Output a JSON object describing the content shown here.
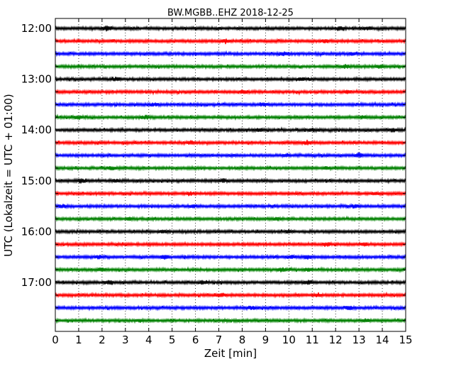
{
  "chart_data": {
    "type": "line",
    "title": "BW.MGBB..EHZ 2018-12-25",
    "xlabel": "Zeit  [min]",
    "ylabel": "UTC (Lokalzeit = UTC + 01:00)",
    "xlim": [
      0,
      15
    ],
    "x_ticks": [
      "0",
      "1",
      "2",
      "3",
      "4",
      "5",
      "6",
      "7",
      "8",
      "9",
      "10",
      "11",
      "12",
      "13",
      "14",
      "15"
    ],
    "y_tick_labels": [
      "12:00",
      "13:00",
      "14:00",
      "15:00",
      "16:00",
      "17:00"
    ],
    "grid": "vertical dotted",
    "trace_minutes": 15,
    "trace_colors": [
      "#000000",
      "#ff0000",
      "#0000ff",
      "#008000"
    ],
    "traces": [
      {
        "start": "12:00",
        "events": [
          [
            2.2,
            2.3
          ],
          [
            12.2,
            1.8
          ],
          [
            13.4,
            1.6
          ]
        ]
      },
      {
        "start": "12:15",
        "events": [
          [
            7.3,
            1.6
          ],
          [
            11.5,
            1.5
          ]
        ]
      },
      {
        "start": "12:30",
        "events": [
          [
            9.8,
            1.5
          ],
          [
            12.7,
            1.6
          ]
        ]
      },
      {
        "start": "12:45",
        "events": [
          [
            12.4,
            2.0
          ],
          [
            13.9,
            1.5
          ]
        ]
      },
      {
        "start": "13:00",
        "events": [
          [
            2.6,
            1.6
          ],
          [
            10.6,
            1.5
          ]
        ]
      },
      {
        "start": "13:15",
        "events": [
          [
            8.1,
            1.5
          ],
          [
            12.5,
            1.4
          ]
        ]
      },
      {
        "start": "13:30",
        "events": [
          [
            4.2,
            1.6
          ],
          [
            8.9,
            1.5
          ]
        ]
      },
      {
        "start": "13:45",
        "events": [
          [
            1.0,
            2.0
          ],
          [
            3.9,
            1.8
          ],
          [
            13.2,
            1.5
          ]
        ]
      },
      {
        "start": "14:00",
        "events": [
          [
            8.7,
            1.7
          ],
          [
            11.0,
            1.6
          ],
          [
            14.5,
            1.5
          ]
        ]
      },
      {
        "start": "14:15",
        "events": [
          [
            10.8,
            1.8
          ],
          [
            5.8,
            1.4
          ]
        ]
      },
      {
        "start": "14:30",
        "events": [
          [
            13.0,
            2.4
          ],
          [
            9.9,
            1.6
          ]
        ]
      },
      {
        "start": "14:45",
        "events": [
          [
            2.4,
            1.5
          ],
          [
            11.6,
            1.4
          ]
        ]
      },
      {
        "start": "15:00",
        "events": [
          [
            1.1,
            2.2
          ],
          [
            7.2,
            1.8
          ],
          [
            2.6,
            1.5
          ]
        ]
      },
      {
        "start": "15:15",
        "events": [
          [
            5.8,
            1.6
          ],
          [
            13.7,
            1.5
          ]
        ]
      },
      {
        "start": "15:30",
        "events": [
          [
            0.3,
            1.7
          ],
          [
            5.9,
            1.6
          ],
          [
            12.8,
            1.5
          ]
        ]
      },
      {
        "start": "15:45",
        "events": [
          [
            3.2,
            1.4
          ],
          [
            9.5,
            1.4
          ]
        ]
      },
      {
        "start": "16:00",
        "events": [
          [
            4.6,
            1.6
          ],
          [
            10.0,
            1.5
          ]
        ]
      },
      {
        "start": "16:15",
        "events": [
          [
            11.6,
            2.2
          ],
          [
            13.2,
            1.7
          ]
        ]
      },
      {
        "start": "16:30",
        "events": [
          [
            1.9,
            2.0
          ],
          [
            4.7,
            2.4
          ],
          [
            10.1,
            2.0
          ],
          [
            10.8,
            2.3
          ]
        ]
      },
      {
        "start": "16:45",
        "events": [
          [
            2.0,
            1.6
          ],
          [
            9.7,
            1.8
          ],
          [
            10.8,
            1.6
          ]
        ]
      },
      {
        "start": "17:00",
        "events": [
          [
            2.3,
            2.0
          ],
          [
            10.8,
            1.8
          ],
          [
            6.3,
            1.5
          ]
        ]
      },
      {
        "start": "17:15",
        "events": [
          [
            7.1,
            1.5
          ],
          [
            11.2,
            1.5
          ]
        ]
      },
      {
        "start": "17:30",
        "events": [
          [
            8.4,
            1.6
          ],
          [
            12.6,
            1.5
          ]
        ]
      },
      {
        "start": "17:45",
        "events": [
          [
            13.3,
            1.5
          ],
          [
            3.6,
            1.4
          ]
        ]
      }
    ]
  }
}
